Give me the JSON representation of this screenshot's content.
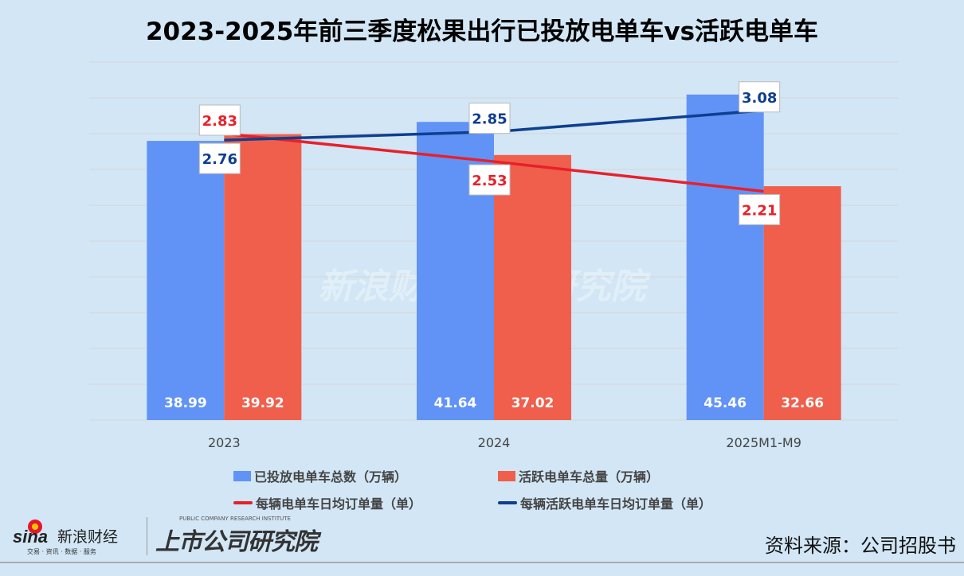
{
  "chart_data": {
    "type": "bar+line",
    "title": "2023-2025年前三季度松果出行已投放电单车vs活跃电单车",
    "categories": [
      "2023",
      "2024",
      "2025M1-M9"
    ],
    "bar_series": [
      {
        "name": "已投放电单车总数（万辆）",
        "values": [
          38.99,
          41.64,
          45.46
        ],
        "color": "#6193f7"
      },
      {
        "name": "活跃电单车总量（万辆）",
        "values": [
          39.92,
          37.02,
          32.66
        ],
        "color": "#f05f4c"
      }
    ],
    "line_series": [
      {
        "name": "每辆电单车日均订单量（单）",
        "values": [
          2.83,
          2.53,
          2.21
        ],
        "color": "#e8202a"
      },
      {
        "name": "每辆活跃电单车日均订单量（单）",
        "values": [
          2.76,
          2.85,
          3.08
        ],
        "color": "#0f3f8f"
      }
    ],
    "ylim": [
      0,
      50
    ],
    "y2lim": [
      -0.25,
      3.6
    ],
    "grid": true,
    "axes_visible": false,
    "legend_position": "bottom"
  },
  "footer": {
    "source": "资料来源：公司招股书",
    "logo_sina": "sina 新浪财经",
    "logo_sina_sub": "交易 · 资讯 · 数据 · 服务",
    "logo_inst_en": "PUBLIC COMPANY RESEARCH INSTITUTE",
    "logo_inst_cn": "上市公司研究院"
  }
}
